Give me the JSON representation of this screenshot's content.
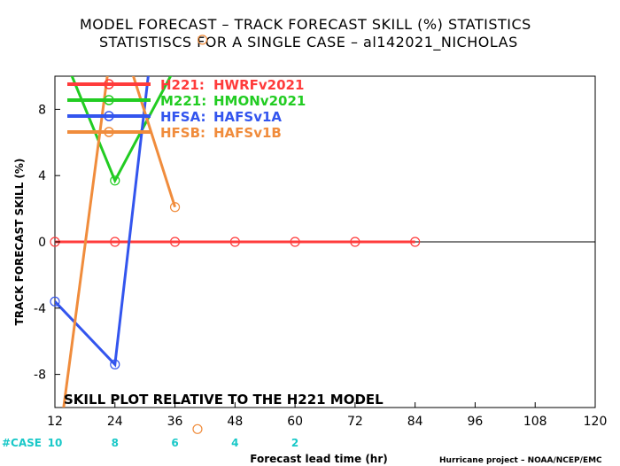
{
  "chart_data": {
    "type": "line",
    "title": "MODEL FORECAST – TRACK FORECAST SKILL (%) STATISTICS",
    "subtitle": "STATISTISCS FOR A SINGLE CASE – al142021_NICHOLAS",
    "xlabel": "Forecast lead time (hr)",
    "ylabel": "TRACK FORECAST SKILL (%)",
    "xlim": [
      12,
      120
    ],
    "ylim": [
      -10,
      10
    ],
    "x_ticks": [
      12,
      24,
      36,
      48,
      60,
      72,
      84,
      96,
      108,
      120
    ],
    "y_ticks": [
      -8,
      -4,
      0,
      4,
      8
    ],
    "grid": false,
    "legend_position": "top-left",
    "annotation": "SKILL PLOT RELATIVE TO THE H221 MODEL",
    "case_label": "#CASE",
    "case_counts": [
      {
        "x": 12,
        "n": "10"
      },
      {
        "x": 24,
        "n": "8"
      },
      {
        "x": 36,
        "n": "6"
      },
      {
        "x": 48,
        "n": "4"
      },
      {
        "x": 60,
        "n": "2"
      }
    ],
    "series": [
      {
        "code": "H221:",
        "name": "HWRFv2021",
        "color": "#ff3b3b",
        "x": [
          12,
          24,
          36,
          48,
          60,
          72,
          84
        ],
        "y": [
          0,
          0,
          0,
          0,
          0,
          0,
          0
        ]
      },
      {
        "code": "M221:",
        "name": "HMONv2021",
        "color": "#22cc22",
        "x": [
          12,
          24,
          36
        ],
        "y": [
          12.5,
          3.7,
          10.5
        ]
      },
      {
        "code": "HFSA:",
        "name": "HAFSv1A",
        "color": "#3355ee",
        "x": [
          12,
          24,
          36
        ],
        "y": [
          -3.6,
          -7.4,
          24
        ]
      },
      {
        "code": "HFSB:",
        "name": "HAFSv1B",
        "color": "#f08c3c",
        "x": [
          12,
          24,
          36
        ],
        "y": [
          -14,
          13.5,
          2.1
        ]
      }
    ],
    "extra_points": [
      {
        "series": "HFSB:",
        "x": 41.5,
        "y": 12.2
      },
      {
        "series": "HFSB:",
        "x": 40.5,
        "y": -11.3
      }
    ]
  },
  "credit": "Hurricane project – NOAA/NCEP/EMC"
}
